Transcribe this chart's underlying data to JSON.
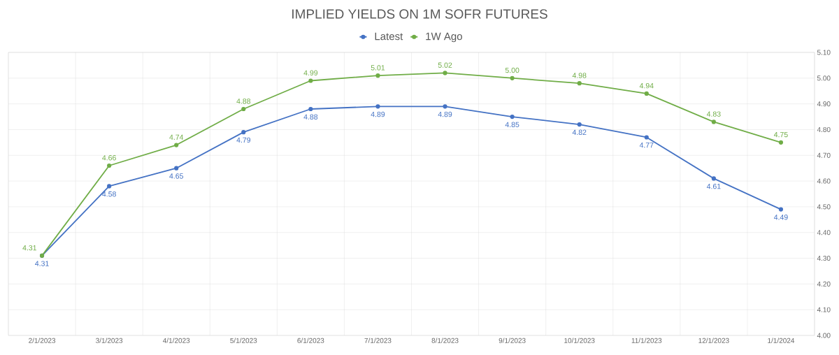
{
  "chart_data": {
    "type": "line",
    "title": "IMPLIED YIELDS ON 1M SOFR FUTURES",
    "categories": [
      "2/1/2023",
      "3/1/2023",
      "4/1/2023",
      "5/1/2023",
      "6/1/2023",
      "7/1/2023",
      "8/1/2023",
      "9/1/2023",
      "10/1/2023",
      "11/1/2023",
      "12/1/2023",
      "1/1/2024"
    ],
    "series": [
      {
        "name": "Latest",
        "color": "#4472c4",
        "values": [
          4.31,
          4.58,
          4.65,
          4.79,
          4.88,
          4.89,
          4.89,
          4.85,
          4.82,
          4.77,
          4.61,
          4.49
        ],
        "value_labels": [
          "4.31",
          "4.58",
          "4.65",
          "4.79",
          "4.88",
          "4.89",
          "4.89",
          "4.85",
          "4.82",
          "4.77",
          "4.61",
          "4.49"
        ]
      },
      {
        "name": "1W Ago",
        "color": "#70ad47",
        "values": [
          4.31,
          4.66,
          4.74,
          4.88,
          4.99,
          5.01,
          5.02,
          5.0,
          4.98,
          4.94,
          4.83,
          4.75
        ],
        "value_labels": [
          "4.31",
          "4.66",
          "4.74",
          "4.88",
          "4.99",
          "5.01",
          "5.02",
          "5.00",
          "4.98",
          "4.94",
          "4.83",
          "4.75"
        ]
      }
    ],
    "ylim": [
      4.0,
      5.1
    ],
    "yticks": [
      {
        "value": 4.0,
        "label": "4.00"
      },
      {
        "value": 4.1,
        "label": "4.10"
      },
      {
        "value": 4.2,
        "label": "4.20"
      },
      {
        "value": 4.3,
        "label": "4.30"
      },
      {
        "value": 4.4,
        "label": "4.40"
      },
      {
        "value": 4.5,
        "label": "4.50"
      },
      {
        "value": 4.6,
        "label": "4.60"
      },
      {
        "value": 4.7,
        "label": "4.70"
      },
      {
        "value": 4.8,
        "label": "4.80"
      },
      {
        "value": 4.9,
        "label": "4.90"
      },
      {
        "value": 5.0,
        "label": "5.00"
      },
      {
        "value": 5.1,
        "label": "5.10"
      }
    ],
    "grid": true,
    "legend": "top",
    "marker": "circle",
    "line_style": "solid"
  }
}
